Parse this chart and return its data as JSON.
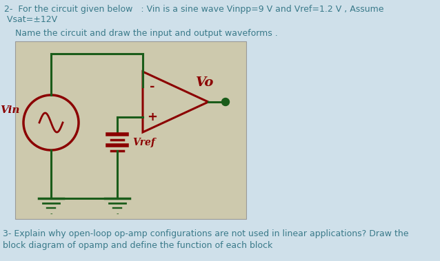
{
  "bg_color": "#cfe0ea",
  "circuit_bg": "#cdc9ad",
  "dark_red": "#8b0000",
  "dark_green": "#1a5c1a",
  "text_color": "#3a7a8a",
  "title_line1": "2-  For the circuit given below   : Vin is a sine wave Vinpp=9 V and Vref=1.2 V , Assume",
  "title_line2": " Vsat=±12V",
  "subtitle": "    Name the circuit and draw the input and output waveforms .",
  "bottom_line1": "3- Explain why open-loop op-amp configurations are not used in linear applications? Draw the",
  "bottom_line2": "block diagram of opamp and define the function of each block",
  "vin_label": "Vin",
  "vo_label": "Vo",
  "vref_label": "Vref",
  "figsize": [
    6.38,
    3.79
  ],
  "dpi": 100
}
